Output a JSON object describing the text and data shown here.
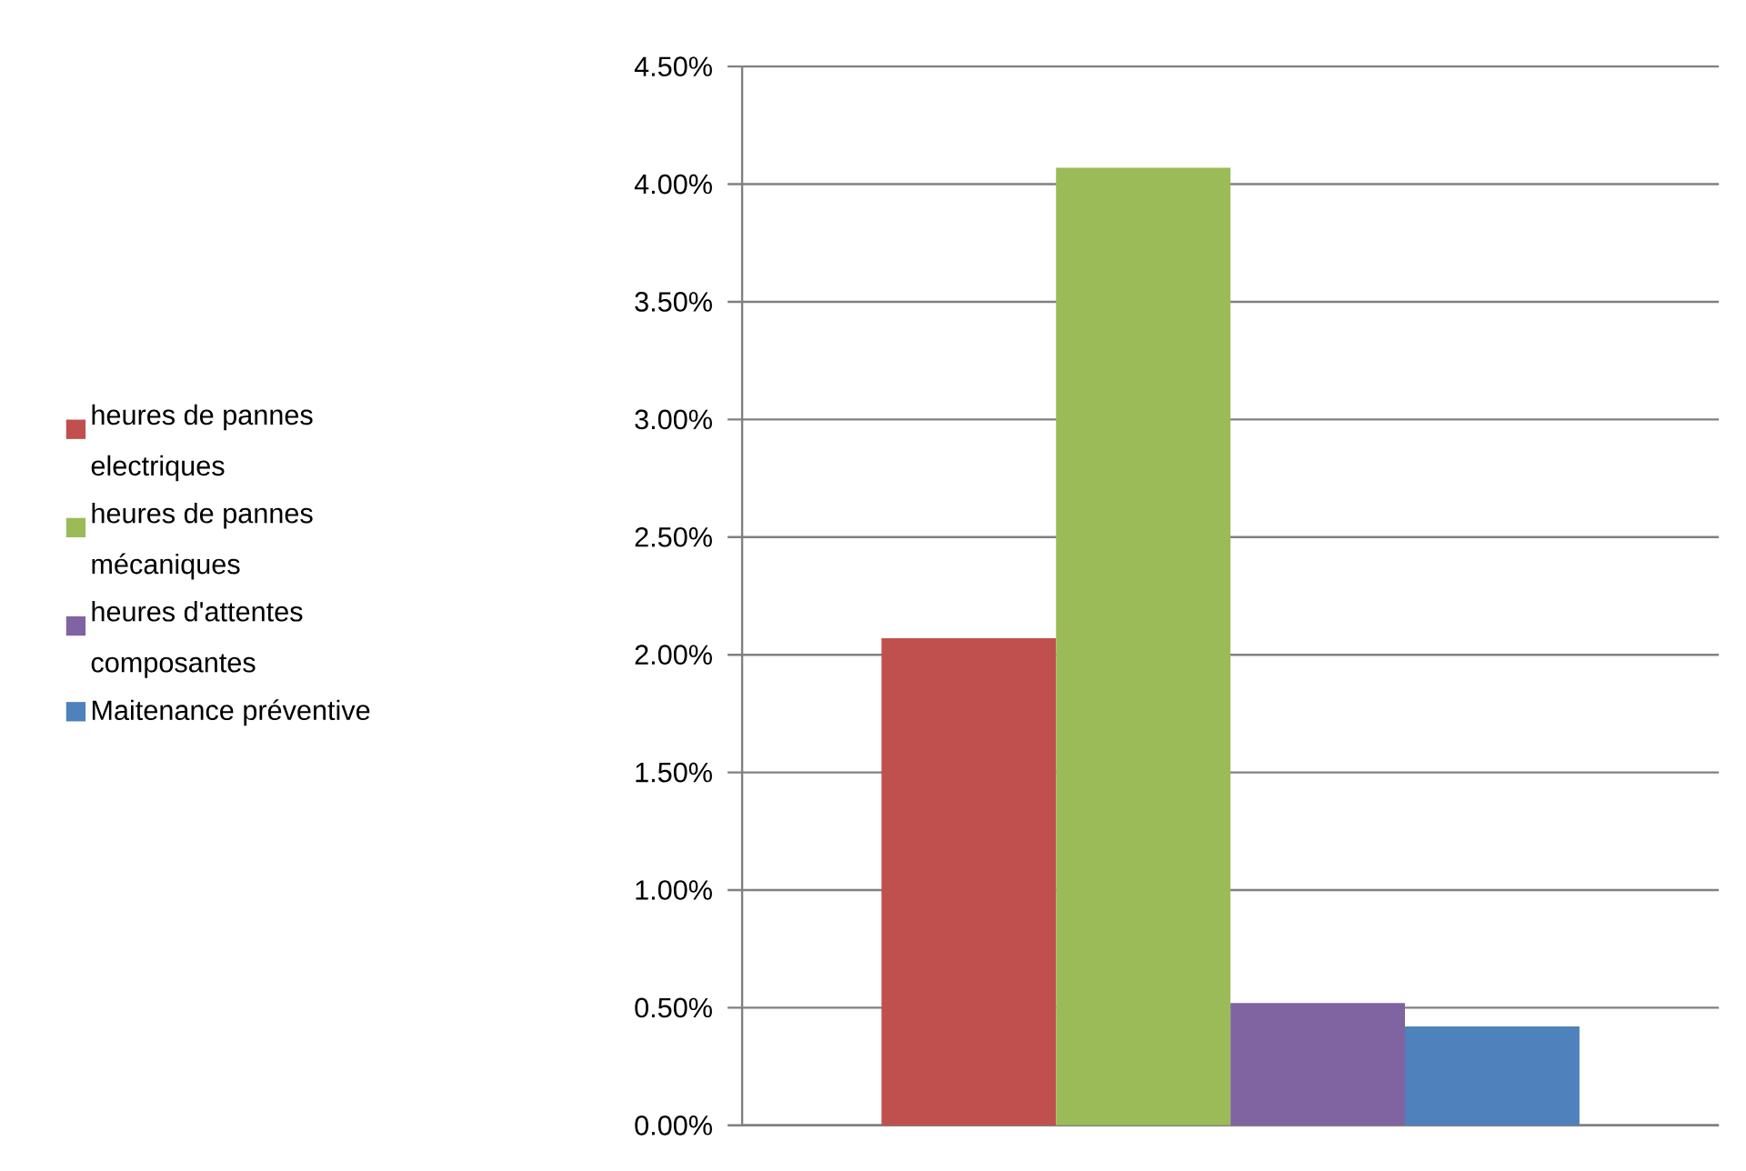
{
  "chart_data": {
    "type": "bar",
    "categories": [
      null
    ],
    "series": [
      {
        "name": "heures de pannes electriques",
        "color": "#c0504d",
        "values": [
          2.07
        ]
      },
      {
        "name": "heures de pannes mécaniques",
        "color": "#9bbb59",
        "values": [
          4.07
        ]
      },
      {
        "name": "heures d'attentes composantes",
        "color": "#8064a2",
        "values": [
          0.52
        ]
      },
      {
        "name": "Maitenance préventive",
        "color": "#4f81bd",
        "values": [
          0.42
        ]
      }
    ],
    "ylim": [
      0,
      4.5
    ],
    "yticks": [
      {
        "value": 0,
        "label": "0.00%"
      },
      {
        "value": 0.5,
        "label": "0.50%"
      },
      {
        "value": 1,
        "label": "1.00%"
      },
      {
        "value": 1.5,
        "label": "1.50%"
      },
      {
        "value": 2,
        "label": "2.00%"
      },
      {
        "value": 2.5,
        "label": "2.50%"
      },
      {
        "value": 3,
        "label": "3.00%"
      },
      {
        "value": 3.5,
        "label": "3.50%"
      },
      {
        "value": 4,
        "label": "4.00%"
      },
      {
        "value": 4.5,
        "label": "4.50%"
      }
    ],
    "grid": "y",
    "legend": "left"
  }
}
